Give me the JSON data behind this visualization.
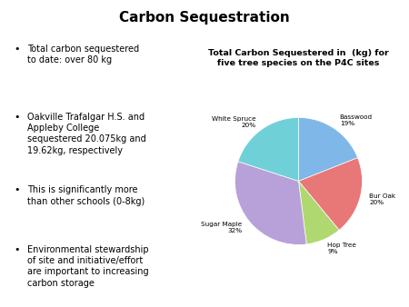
{
  "title": "Carbon Sequestration",
  "bullet_points": [
    "Total carbon sequestered\nto date: over 80 kg",
    "Oakville Trafalgar H.S. and\nAppleby College\nsequestered 20.075kg and\n19.62kg, respectively",
    "This is significantly more\nthan other schools (0-8kg)",
    "Environmental stewardship\nof site and initiative/effort\nare important to increasing\ncarbon storage"
  ],
  "pie_title": "Total Carbon Sequestered in  (kg) for\nfive tree species on the P4C sites",
  "pie_labels": [
    "Basswood\n19%",
    "Bur Oak\n20%",
    "Hop Tree\n9%",
    "Sugar Maple\n32%",
    "White Spruce\n20%"
  ],
  "pie_sizes": [
    19,
    20,
    9,
    32,
    20
  ],
  "pie_colors": [
    "#7FB8E8",
    "#E87878",
    "#B0D870",
    "#B8A0D8",
    "#70D0D8"
  ],
  "background_color": "#ffffff",
  "title_fontsize": 11,
  "bullet_fontsize": 7.0,
  "pie_title_fontsize": 6.8,
  "pie_label_fontsize": 5.2
}
